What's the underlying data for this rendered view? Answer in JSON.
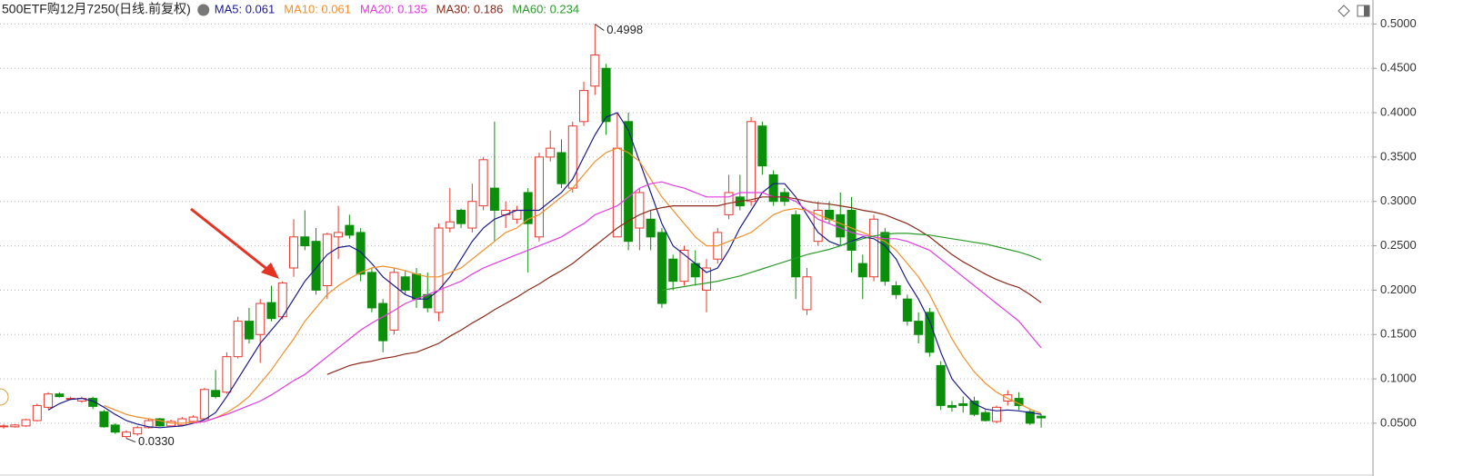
{
  "chart_data": {
    "type": "candlestick",
    "title": "500ETF购12月7250(日线.前复权)",
    "ylim": [
      0.01,
      0.527
    ],
    "yticks": [
      {
        "value": 0.05,
        "label": "0.0500"
      },
      {
        "value": 0.1,
        "label": "0.1000"
      },
      {
        "value": 0.15,
        "label": "0.1500"
      },
      {
        "value": 0.2,
        "label": "0.2000"
      },
      {
        "value": 0.25,
        "label": "0.2500"
      },
      {
        "value": 0.3,
        "label": "0.3000"
      },
      {
        "value": 0.35,
        "label": "0.3500"
      },
      {
        "value": 0.4,
        "label": "0.4000"
      },
      {
        "value": 0.45,
        "label": "0.4500"
      },
      {
        "value": 0.5,
        "label": "0.5000"
      }
    ],
    "grid": true,
    "up_color": "#e8372c",
    "down_color": "#0b8f0b",
    "open": [
      0.046,
      0.046,
      0.047,
      0.053,
      0.068,
      0.083,
      0.077,
      0.075,
      0.078,
      0.063,
      0.048,
      0.035,
      0.038,
      0.045,
      0.055,
      0.047,
      0.048,
      0.052,
      0.055,
      0.087,
      0.085,
      0.125,
      0.165,
      0.15,
      0.186,
      0.17,
      0.225,
      0.26,
      0.255,
      0.205,
      0.26,
      0.273,
      0.265,
      0.22,
      0.185,
      0.155,
      0.215,
      0.218,
      0.195,
      0.175,
      0.27,
      0.29,
      0.27,
      0.295,
      0.315,
      0.285,
      0.28,
      0.31,
      0.26,
      0.35,
      0.355,
      0.315,
      0.39,
      0.43,
      0.45,
      0.26,
      0.39,
      0.27,
      0.28,
      0.265,
      0.235,
      0.21,
      0.23,
      0.2,
      0.235,
      0.285,
      0.305,
      0.3,
      0.385,
      0.33,
      0.31,
      0.285,
      0.178,
      0.255,
      0.29,
      0.285,
      0.29,
      0.23,
      0.215,
      0.265,
      0.205,
      0.19,
      0.165,
      0.175,
      0.115,
      0.07,
      0.072,
      0.075,
      0.062,
      0.052,
      0.075,
      0.078,
      0.063,
      0.058
    ],
    "high": [
      0.049,
      0.049,
      0.055,
      0.072,
      0.085,
      0.085,
      0.08,
      0.08,
      0.08,
      0.065,
      0.05,
      0.042,
      0.047,
      0.055,
      0.056,
      0.054,
      0.057,
      0.059,
      0.09,
      0.11,
      0.13,
      0.17,
      0.18,
      0.19,
      0.205,
      0.21,
      0.28,
      0.29,
      0.27,
      0.265,
      0.295,
      0.285,
      0.27,
      0.225,
      0.19,
      0.225,
      0.222,
      0.225,
      0.22,
      0.275,
      0.315,
      0.292,
      0.32,
      0.35,
      0.39,
      0.3,
      0.295,
      0.315,
      0.355,
      0.38,
      0.37,
      0.39,
      0.435,
      0.4998,
      0.455,
      0.4,
      0.4,
      0.315,
      0.29,
      0.27,
      0.24,
      0.25,
      0.245,
      0.235,
      0.27,
      0.33,
      0.33,
      0.395,
      0.39,
      0.335,
      0.315,
      0.29,
      0.225,
      0.3,
      0.3,
      0.31,
      0.305,
      0.24,
      0.285,
      0.27,
      0.21,
      0.195,
      0.175,
      0.18,
      0.12,
      0.075,
      0.08,
      0.08,
      0.065,
      0.07,
      0.087,
      0.085,
      0.065,
      0.06
    ],
    "low": [
      0.044,
      0.045,
      0.046,
      0.052,
      0.066,
      0.079,
      0.076,
      0.073,
      0.066,
      0.045,
      0.038,
      0.033,
      0.036,
      0.044,
      0.046,
      0.046,
      0.047,
      0.051,
      0.054,
      0.078,
      0.083,
      0.123,
      0.14,
      0.118,
      0.165,
      0.167,
      0.215,
      0.245,
      0.195,
      0.19,
      0.235,
      0.258,
      0.21,
      0.175,
      0.13,
      0.15,
      0.195,
      0.18,
      0.175,
      0.165,
      0.265,
      0.27,
      0.265,
      0.29,
      0.255,
      0.27,
      0.275,
      0.22,
      0.255,
      0.345,
      0.315,
      0.31,
      0.385,
      0.42,
      0.375,
      0.26,
      0.245,
      0.245,
      0.245,
      0.18,
      0.2,
      0.205,
      0.205,
      0.175,
      0.23,
      0.28,
      0.29,
      0.295,
      0.33,
      0.295,
      0.295,
      0.19,
      0.172,
      0.25,
      0.275,
      0.25,
      0.22,
      0.19,
      0.21,
      0.205,
      0.19,
      0.16,
      0.14,
      0.125,
      0.065,
      0.063,
      0.062,
      0.058,
      0.052,
      0.05,
      0.07,
      0.065,
      0.048,
      0.045
    ],
    "close": [
      0.047,
      0.048,
      0.054,
      0.07,
      0.083,
      0.08,
      0.078,
      0.078,
      0.069,
      0.046,
      0.04,
      0.04,
      0.045,
      0.053,
      0.047,
      0.052,
      0.055,
      0.057,
      0.088,
      0.08,
      0.125,
      0.165,
      0.145,
      0.185,
      0.168,
      0.208,
      0.26,
      0.25,
      0.2,
      0.263,
      0.265,
      0.262,
      0.218,
      0.18,
      0.143,
      0.22,
      0.2,
      0.19,
      0.18,
      0.27,
      0.277,
      0.275,
      0.3,
      0.347,
      0.29,
      0.29,
      0.29,
      0.275,
      0.35,
      0.36,
      0.32,
      0.385,
      0.425,
      0.465,
      0.39,
      0.36,
      0.255,
      0.31,
      0.26,
      0.185,
      0.21,
      0.245,
      0.215,
      0.225,
      0.265,
      0.31,
      0.295,
      0.39,
      0.34,
      0.3,
      0.3,
      0.215,
      0.215,
      0.29,
      0.28,
      0.26,
      0.245,
      0.215,
      0.28,
      0.21,
      0.195,
      0.165,
      0.15,
      0.13,
      0.07,
      0.068,
      0.07,
      0.06,
      0.053,
      0.068,
      0.082,
      0.07,
      0.05,
      0.056
    ],
    "series": [
      {
        "name": "MA5: 0.061",
        "color": "#1a1a8c",
        "values": [
          null,
          null,
          null,
          null,
          0.065,
          0.072,
          0.077,
          0.078,
          0.075,
          0.068,
          0.06,
          0.053,
          0.049,
          0.046,
          0.045,
          0.046,
          0.047,
          0.05,
          0.054,
          0.062,
          0.08,
          0.1,
          0.12,
          0.14,
          0.155,
          0.17,
          0.19,
          0.21,
          0.225,
          0.24,
          0.248,
          0.25,
          0.243,
          0.23,
          0.215,
          0.205,
          0.195,
          0.19,
          0.19,
          0.2,
          0.215,
          0.235,
          0.255,
          0.27,
          0.28,
          0.285,
          0.29,
          0.29,
          0.29,
          0.3,
          0.31,
          0.325,
          0.35,
          0.375,
          0.395,
          0.4,
          0.38,
          0.345,
          0.31,
          0.275,
          0.25,
          0.24,
          0.23,
          0.22,
          0.225,
          0.245,
          0.27,
          0.29,
          0.31,
          0.32,
          0.32,
          0.305,
          0.285,
          0.265,
          0.255,
          0.25,
          0.255,
          0.26,
          0.258,
          0.25,
          0.235,
          0.21,
          0.19,
          0.165,
          0.13,
          0.1,
          0.085,
          0.072,
          0.066,
          0.064,
          0.065,
          0.064,
          0.062,
          0.06
        ]
      },
      {
        "name": "MA10: 0.061",
        "color": "#f0902a",
        "values": [
          null,
          null,
          null,
          null,
          null,
          null,
          null,
          null,
          null,
          0.07,
          0.065,
          0.06,
          0.057,
          0.055,
          0.053,
          0.05,
          0.05,
          0.051,
          0.052,
          0.056,
          0.062,
          0.07,
          0.08,
          0.095,
          0.11,
          0.128,
          0.145,
          0.165,
          0.18,
          0.195,
          0.205,
          0.213,
          0.22,
          0.225,
          0.227,
          0.225,
          0.222,
          0.218,
          0.215,
          0.215,
          0.22,
          0.225,
          0.235,
          0.245,
          0.255,
          0.265,
          0.27,
          0.28,
          0.285,
          0.295,
          0.305,
          0.315,
          0.33,
          0.345,
          0.355,
          0.36,
          0.355,
          0.345,
          0.325,
          0.305,
          0.29,
          0.275,
          0.26,
          0.25,
          0.25,
          0.255,
          0.26,
          0.265,
          0.275,
          0.285,
          0.29,
          0.292,
          0.29,
          0.285,
          0.28,
          0.275,
          0.27,
          0.265,
          0.26,
          0.255,
          0.245,
          0.23,
          0.215,
          0.195,
          0.17,
          0.145,
          0.125,
          0.108,
          0.095,
          0.085,
          0.078,
          0.072,
          0.066,
          0.061
        ]
      },
      {
        "name": "MA20: 0.135",
        "color": "#e23be0",
        "values": [
          null,
          null,
          null,
          null,
          null,
          null,
          null,
          null,
          null,
          null,
          null,
          null,
          null,
          null,
          null,
          null,
          null,
          0.05,
          0.052,
          0.056,
          0.06,
          0.065,
          0.07,
          0.075,
          0.082,
          0.09,
          0.098,
          0.105,
          0.115,
          0.125,
          0.135,
          0.145,
          0.155,
          0.163,
          0.17,
          0.177,
          0.185,
          0.19,
          0.195,
          0.2,
          0.205,
          0.21,
          0.218,
          0.225,
          0.23,
          0.235,
          0.24,
          0.245,
          0.25,
          0.255,
          0.26,
          0.268,
          0.275,
          0.285,
          0.29,
          0.295,
          0.305,
          0.315,
          0.32,
          0.322,
          0.318,
          0.315,
          0.31,
          0.305,
          0.305,
          0.305,
          0.31,
          0.31,
          0.31,
          0.305,
          0.305,
          0.3,
          0.29,
          0.28,
          0.275,
          0.27,
          0.265,
          0.262,
          0.26,
          0.258,
          0.258,
          0.255,
          0.25,
          0.245,
          0.235,
          0.225,
          0.215,
          0.205,
          0.195,
          0.185,
          0.175,
          0.165,
          0.15,
          0.135
        ]
      },
      {
        "name": "MA30: 0.186",
        "color": "#8b2a1a",
        "values": [
          null,
          null,
          null,
          null,
          null,
          null,
          null,
          null,
          null,
          null,
          null,
          null,
          null,
          null,
          null,
          null,
          null,
          null,
          null,
          null,
          null,
          null,
          null,
          null,
          null,
          null,
          null,
          null,
          null,
          0.105,
          0.11,
          0.115,
          0.118,
          0.12,
          0.123,
          0.125,
          0.128,
          0.13,
          0.135,
          0.14,
          0.148,
          0.155,
          0.163,
          0.17,
          0.178,
          0.185,
          0.192,
          0.2,
          0.207,
          0.215,
          0.222,
          0.23,
          0.24,
          0.25,
          0.26,
          0.27,
          0.278,
          0.285,
          0.29,
          0.293,
          0.295,
          0.295,
          0.295,
          0.295,
          0.295,
          0.298,
          0.3,
          0.302,
          0.305,
          0.305,
          0.305,
          0.303,
          0.3,
          0.298,
          0.297,
          0.295,
          0.293,
          0.29,
          0.288,
          0.285,
          0.28,
          0.275,
          0.268,
          0.26,
          0.25,
          0.24,
          0.232,
          0.225,
          0.218,
          0.212,
          0.207,
          0.203,
          0.195,
          0.186
        ]
      },
      {
        "name": "MA60: 0.234",
        "color": "#2a9a2a",
        "values": [
          null,
          null,
          null,
          null,
          null,
          null,
          null,
          null,
          null,
          null,
          null,
          null,
          null,
          null,
          null,
          null,
          null,
          null,
          null,
          null,
          null,
          null,
          null,
          null,
          null,
          null,
          null,
          null,
          null,
          null,
          null,
          null,
          null,
          null,
          null,
          null,
          null,
          null,
          null,
          null,
          null,
          null,
          null,
          null,
          null,
          null,
          null,
          null,
          null,
          null,
          null,
          null,
          null,
          null,
          null,
          null,
          null,
          null,
          null,
          0.2,
          0.202,
          0.204,
          0.206,
          0.208,
          0.21,
          0.213,
          0.216,
          0.22,
          0.224,
          0.228,
          0.232,
          0.236,
          0.24,
          0.243,
          0.246,
          0.25,
          0.254,
          0.258,
          0.261,
          0.263,
          0.264,
          0.264,
          0.263,
          0.262,
          0.26,
          0.258,
          0.256,
          0.254,
          0.252,
          0.249,
          0.246,
          0.243,
          0.239,
          0.234
        ]
      }
    ],
    "annotations": [
      {
        "value": 0.4998,
        "label": "0.4998"
      },
      {
        "value": 0.033,
        "label": "0.0330"
      }
    ]
  }
}
